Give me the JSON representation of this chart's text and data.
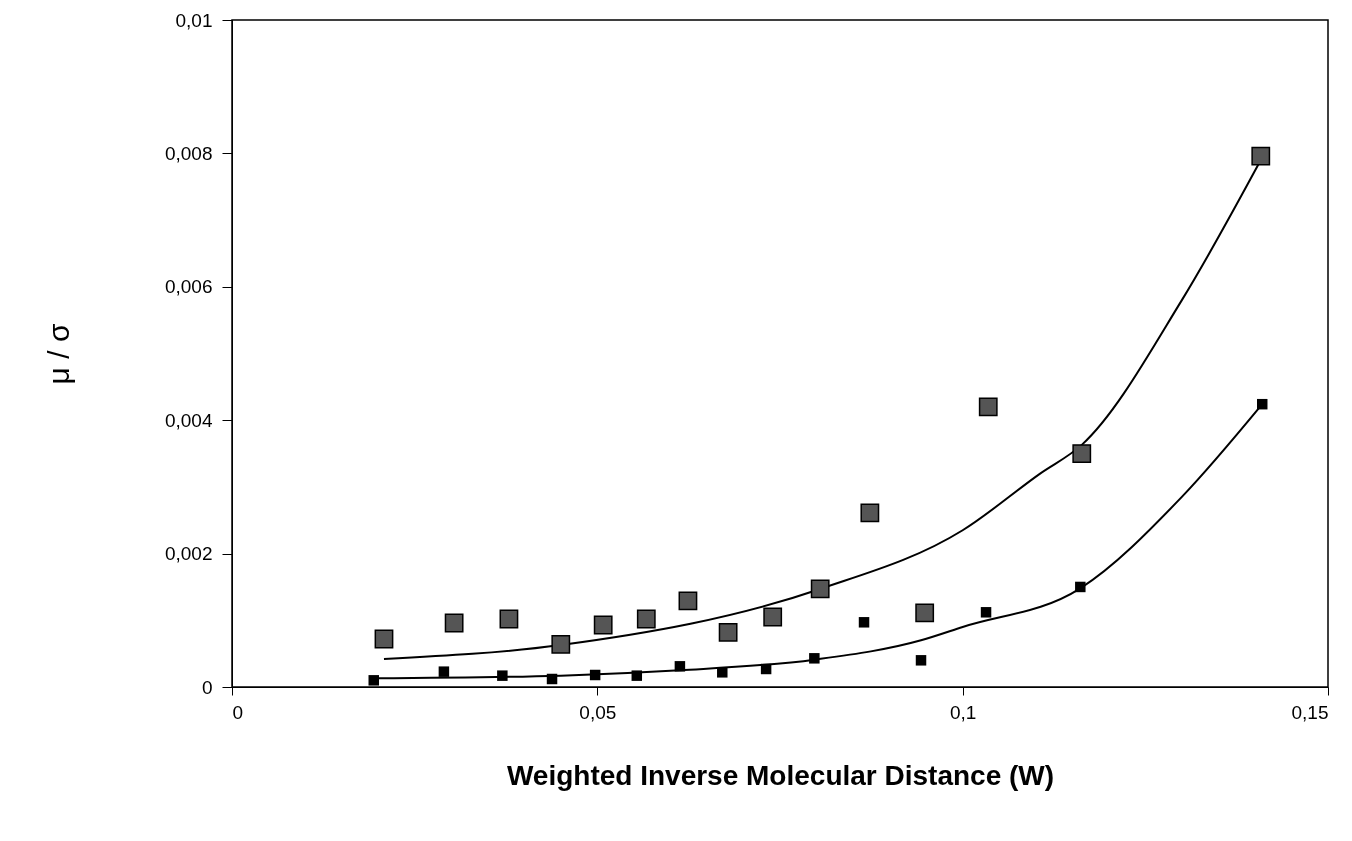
{
  "chart_data": {
    "type": "scatter",
    "xlabel": "Weighted Inverse Molecular Distance (W)",
    "ylabel": "μ / σ",
    "marker": "square",
    "grid": false,
    "xlim": [
      0,
      0.15
    ],
    "xticks": [
      0,
      {
        "value": 0.05,
        "label": "0,05"
      },
      {
        "value": 0.1,
        "label": "0,1"
      },
      {
        "value": 0.15,
        "label": "0,15"
      }
    ],
    "ylim": [
      0,
      0.01
    ],
    "yticks": [
      0,
      {
        "value": 0.002,
        "label": "0,002"
      },
      {
        "value": 0.004,
        "label": "0,004"
      },
      {
        "value": 0.006,
        "label": "0,006"
      },
      {
        "value": 0.008,
        "label": "0,008"
      },
      {
        "value": 0.01,
        "label": "0,01"
      }
    ],
    "series": [
      {
        "type": "line",
        "marker": "none",
        "color": "#000000",
        "x": [
          0.0208,
          0.045,
          0.0805,
          0.1,
          0.1106,
          0.1163,
          0.13,
          0.1408
        ],
        "values": [
          0.00042,
          0.00063,
          0.00147,
          0.00235,
          0.0032,
          0.00363,
          0.0058,
          0.0079
        ]
      },
      {
        "type": "line",
        "marker": "none",
        "color": "#000000",
        "x": [
          0.0194,
          0.045,
          0.0613,
          0.0797,
          0.0943,
          0.1,
          0.1161,
          0.13,
          0.141
        ],
        "values": [
          0.00013,
          0.00017,
          0.00025,
          0.00041,
          0.0007,
          0.0009,
          0.00148,
          0.00285,
          0.00424
        ]
      },
      {
        "color": "#555555",
        "x": [
          0.0208,
          0.0304,
          0.0379,
          0.045,
          0.0508,
          0.0567,
          0.0624,
          0.0679,
          0.074,
          0.0805,
          0.0873,
          0.0948,
          0.1035,
          0.1163,
          0.1408
        ],
        "values": [
          0.00072,
          0.00096,
          0.00102,
          0.00064,
          0.00093,
          0.00102,
          0.00129,
          0.00082,
          0.00105,
          0.00147,
          0.00261,
          0.00111,
          0.0042,
          0.0035,
          0.00796
        ]
      },
      {
        "color": "#000000",
        "x": [
          0.0194,
          0.029,
          0.037,
          0.0438,
          0.0497,
          0.0554,
          0.0613,
          0.0671,
          0.0731,
          0.0797,
          0.0865,
          0.0943,
          0.1032,
          0.1161,
          0.141
        ],
        "values": [
          0.0001,
          0.00023,
          0.00017,
          0.00012,
          0.00018,
          0.00017,
          0.00031,
          0.00022,
          0.00027,
          0.00043,
          0.00097,
          0.0004,
          0.00112,
          0.0015,
          0.00424
        ]
      }
    ]
  }
}
